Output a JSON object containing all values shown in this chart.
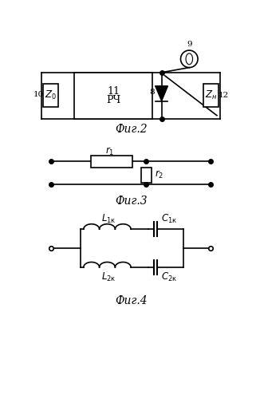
{
  "fig2_label": "Фиг.2",
  "fig3_label": "Фиг.3",
  "fig4_label": "Фиг.4",
  "bg_color": "#ffffff",
  "line_color": "#000000",
  "line_width": 1.2,
  "font_size": 8.5
}
